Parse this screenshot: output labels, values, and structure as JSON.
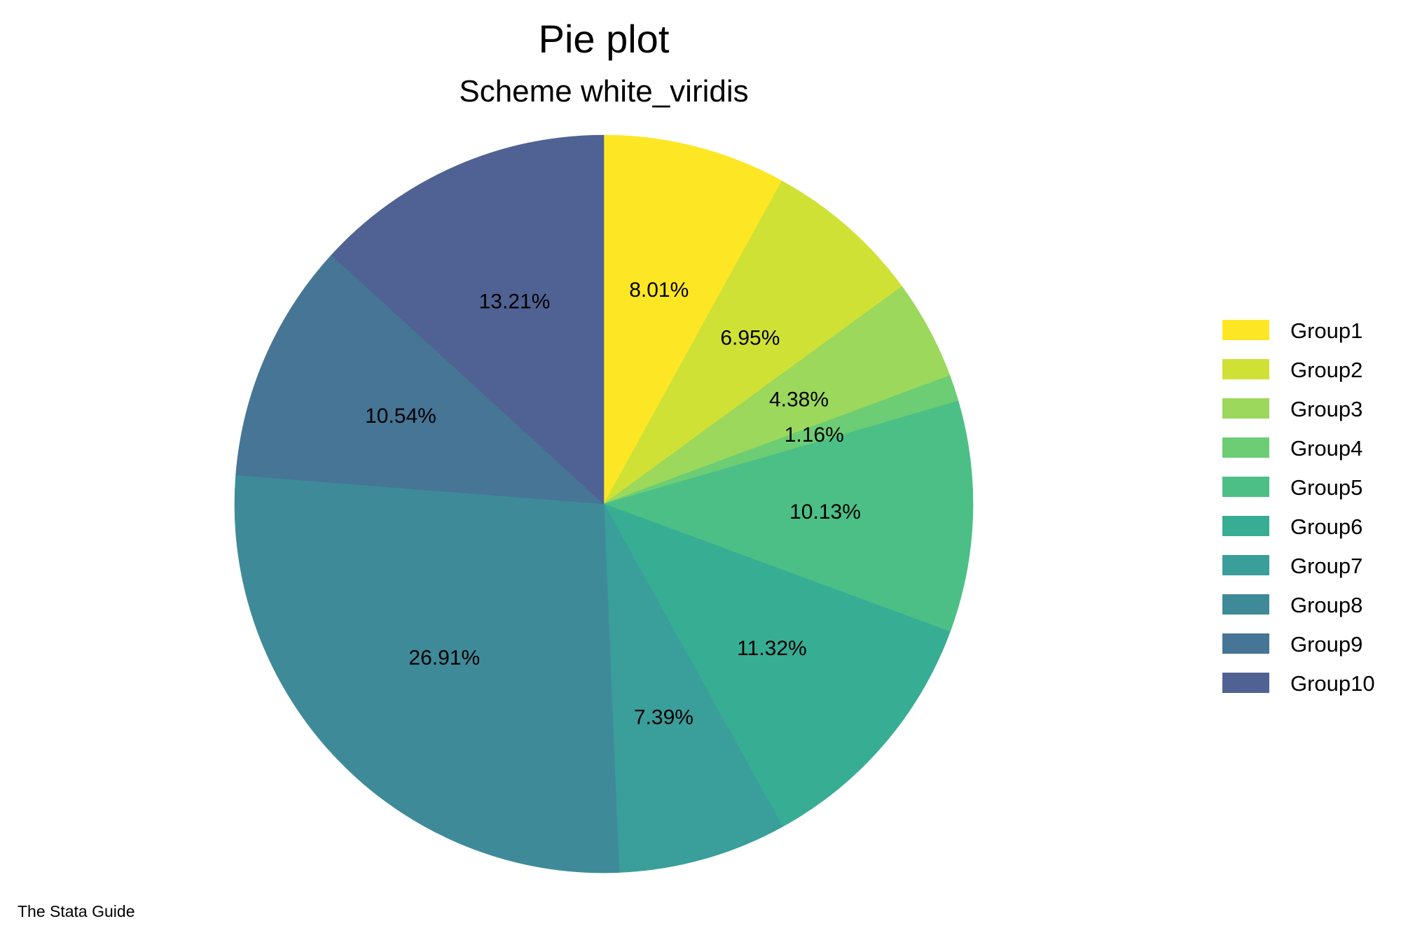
{
  "chart_data": {
    "type": "pie",
    "title": "Pie plot",
    "subtitle": "Scheme white_viridis",
    "note": "The Stata Guide",
    "legend_position": "right",
    "slices": [
      {
        "name": "Group1",
        "value": 8.01,
        "label": "8.01%",
        "color": "#fde725"
      },
      {
        "name": "Group2",
        "value": 6.95,
        "label": "6.95%",
        "color": "#d0e136"
      },
      {
        "name": "Group3",
        "value": 4.38,
        "label": "4.38%",
        "color": "#9bd85c"
      },
      {
        "name": "Group4",
        "value": 1.16,
        "label": "1.16%",
        "color": "#6ccd74"
      },
      {
        "name": "Group5",
        "value": 10.13,
        "label": "10.13%",
        "color": "#4bbf86"
      },
      {
        "name": "Group6",
        "value": 11.32,
        "label": "11.32%",
        "color": "#37ad94"
      },
      {
        "name": "Group7",
        "value": 7.39,
        "label": "7.39%",
        "color": "#3a9e9a"
      },
      {
        "name": "Group8",
        "value": 26.91,
        "label": "26.91%",
        "color": "#3f8a99"
      },
      {
        "name": "Group9",
        "value": 10.54,
        "label": "10.54%",
        "color": "#467596"
      },
      {
        "name": "Group10",
        "value": 13.21,
        "label": "13.21%",
        "color": "#506293"
      }
    ]
  }
}
